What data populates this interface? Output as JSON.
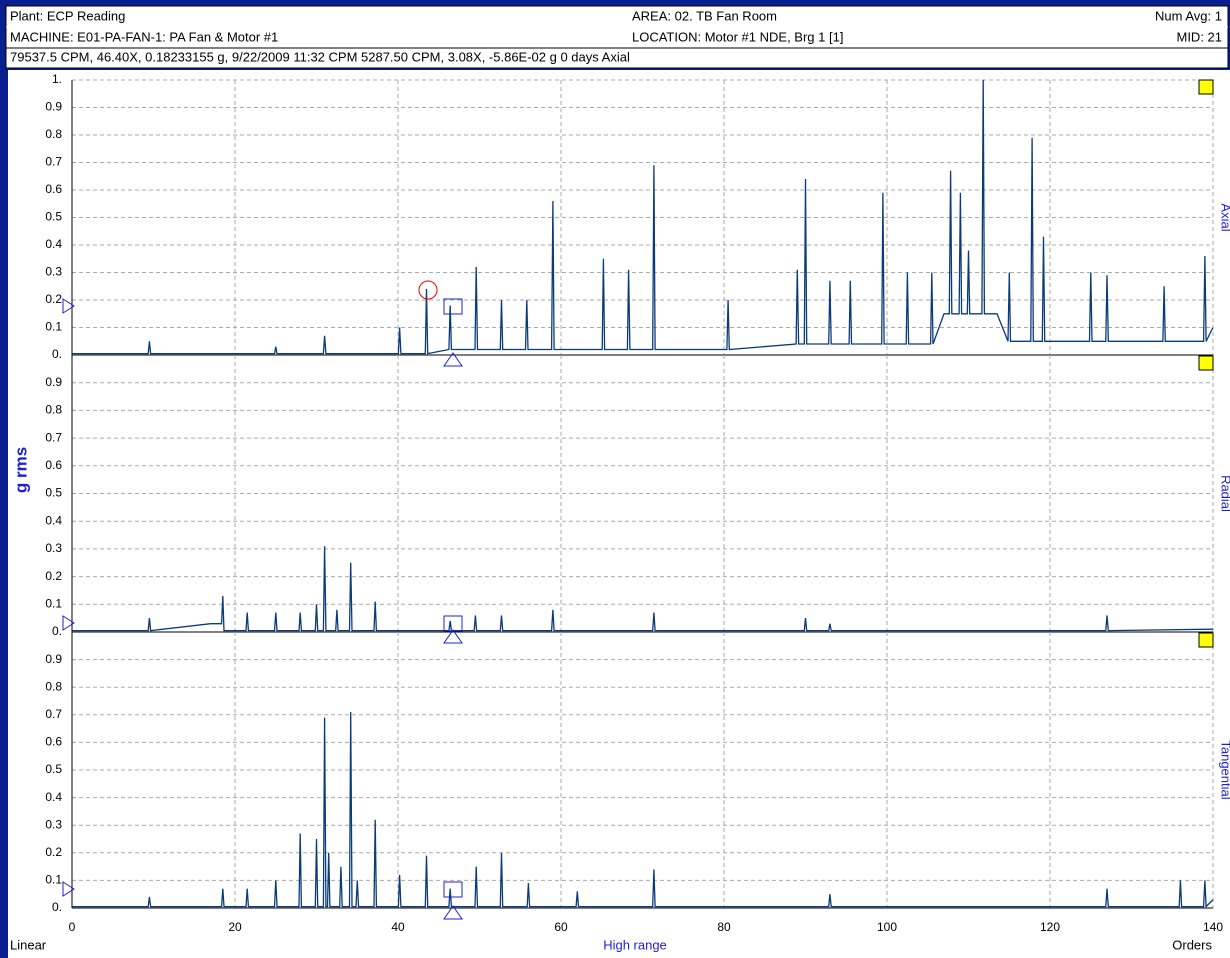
{
  "header": {
    "plant": "Plant: ECP Reading",
    "area": "AREA: 02. TB Fan Room",
    "num_avg": "Num Avg: 1",
    "machine": "MACHINE: E01-PA-FAN-1:  PA Fan & Motor #1",
    "location": "LOCATION: Motor #1 NDE, Brg 1 [1]",
    "mid": "MID: 21",
    "cursor": "79537.5 CPM, 46.40X, 0.18233155 g, 9/22/2009 11:32 CPM 5287.50 CPM, 3.08X, -5.86E-02 g  0 days  Axial"
  },
  "ylabel": "g rms",
  "footer": {
    "scale": "Linear",
    "xlabel": "High range",
    "units": "Orders"
  },
  "chart_data": [
    {
      "type": "line",
      "side_label": "Axial",
      "color": "#0a3a7a",
      "grid": true,
      "xlim": [
        0,
        140
      ],
      "xticks": [
        0,
        20,
        40,
        60,
        80,
        100,
        120,
        140
      ],
      "ylim": [
        0,
        1
      ],
      "yticks": [
        {
          "value": 0,
          "label": "0."
        },
        0.1,
        0.2,
        0.3,
        0.4,
        0.5,
        0.6,
        0.7,
        0.8,
        0.9,
        {
          "value": 1,
          "label": "1."
        }
      ],
      "x": [
        0,
        9.35,
        9.5,
        9.65,
        24.85,
        25,
        25.15,
        30.85,
        31,
        31.15,
        40.05,
        40.2,
        40.35,
        43.35,
        43.5,
        43.65,
        46.25,
        46.4,
        46.55,
        49.45,
        49.6,
        49.75,
        52.55,
        52.7,
        52.85,
        55.65,
        55.8,
        55.95,
        58.85,
        59,
        59.15,
        65.05,
        65.2,
        65.35,
        68.15,
        68.3,
        68.45,
        71.25,
        71.4,
        71.55,
        80.35,
        80.5,
        80.65,
        88.85,
        89,
        89.15,
        89.85,
        90,
        90.15,
        92.85,
        93,
        93.15,
        95.35,
        95.5,
        95.65,
        99.35,
        99.5,
        99.65,
        102.35,
        102.5,
        102.65,
        105.35,
        105.5,
        105.65,
        107,
        107.65,
        107.8,
        107.95,
        108.85,
        109,
        109.15,
        109.85,
        110,
        110.15,
        111.65,
        111.8,
        111.95,
        113.5,
        114.85,
        115,
        115.15,
        117.65,
        117.8,
        117.95,
        119.05,
        119.2,
        119.35,
        124.85,
        125,
        125.15,
        126.85,
        127,
        127.15,
        133.85,
        134,
        134.15,
        138.85,
        139,
        139.15,
        140
      ],
      "values": [
        0.005,
        0.005,
        0.05,
        0.005,
        0.005,
        0.03,
        0.005,
        0.005,
        0.07,
        0.005,
        0.005,
        0.1,
        0.005,
        0.005,
        0.24,
        0.005,
        0.02,
        0.18,
        0.02,
        0.02,
        0.32,
        0.02,
        0.02,
        0.2,
        0.02,
        0.02,
        0.2,
        0.02,
        0.02,
        0.56,
        0.02,
        0.02,
        0.35,
        0.02,
        0.02,
        0.31,
        0.02,
        0.02,
        0.69,
        0.02,
        0.02,
        0.2,
        0.02,
        0.04,
        0.31,
        0.04,
        0.04,
        0.64,
        0.04,
        0.04,
        0.27,
        0.04,
        0.04,
        0.27,
        0.04,
        0.04,
        0.59,
        0.04,
        0.04,
        0.3,
        0.04,
        0.04,
        0.3,
        0.04,
        0.15,
        0.15,
        0.67,
        0.15,
        0.15,
        0.59,
        0.15,
        0.15,
        0.38,
        0.15,
        0.15,
        1.0,
        0.15,
        0.15,
        0.05,
        0.3,
        0.05,
        0.05,
        0.79,
        0.05,
        0.05,
        0.43,
        0.05,
        0.05,
        0.3,
        0.05,
        0.05,
        0.29,
        0.05,
        0.05,
        0.25,
        0.05,
        0.05,
        0.36,
        0.05,
        0.1
      ]
    },
    {
      "type": "line",
      "side_label": "Radial",
      "color": "#0a3a7a",
      "grid": true,
      "xlim": [
        0,
        140
      ],
      "xticks": [
        0,
        20,
        40,
        60,
        80,
        100,
        120,
        140
      ],
      "ylim": [
        0,
        1
      ],
      "yticks": [
        {
          "value": 0,
          "label": "0."
        },
        0.1,
        0.2,
        0.3,
        0.4,
        0.5,
        0.6,
        0.7,
        0.8,
        0.9
      ],
      "x": [
        0,
        9.35,
        9.5,
        9.65,
        17,
        18.35,
        18.5,
        18.65,
        19.5,
        21.35,
        21.5,
        21.65,
        24.85,
        25,
        25.15,
        27.85,
        28,
        28.15,
        29.85,
        30,
        30.15,
        30.85,
        31,
        31.15,
        32.35,
        32.5,
        32.65,
        34.05,
        34.2,
        34.35,
        37.05,
        37.2,
        37.35,
        46.25,
        46.4,
        46.55,
        49.35,
        49.5,
        49.65,
        52.55,
        52.7,
        52.85,
        58.85,
        59,
        59.15,
        71.25,
        71.4,
        71.55,
        89.85,
        90,
        90.15,
        92.85,
        93,
        93.15,
        126.85,
        127,
        127.15,
        140
      ],
      "values": [
        0.005,
        0.005,
        0.05,
        0.005,
        0.03,
        0.03,
        0.13,
        0.005,
        0.005,
        0.005,
        0.07,
        0.005,
        0.005,
        0.07,
        0.005,
        0.005,
        0.07,
        0.005,
        0.005,
        0.1,
        0.005,
        0.005,
        0.31,
        0.005,
        0.005,
        0.08,
        0.005,
        0.005,
        0.25,
        0.005,
        0.005,
        0.11,
        0.005,
        0.005,
        0.04,
        0.005,
        0.005,
        0.06,
        0.005,
        0.005,
        0.06,
        0.005,
        0.005,
        0.08,
        0.005,
        0.005,
        0.07,
        0.005,
        0.005,
        0.05,
        0.005,
        0.005,
        0.03,
        0.005,
        0.005,
        0.06,
        0.005,
        0.01
      ]
    },
    {
      "type": "line",
      "side_label": "Tangential",
      "color": "#0a3a7a",
      "grid": true,
      "xlim": [
        0,
        140
      ],
      "xticks": [
        0,
        20,
        40,
        60,
        80,
        100,
        120,
        140
      ],
      "ylim": [
        0,
        1
      ],
      "yticks": [
        {
          "value": 0,
          "label": "0."
        },
        0.1,
        0.2,
        0.3,
        0.4,
        0.5,
        0.6,
        0.7,
        0.8,
        0.9
      ],
      "x": [
        0,
        9.35,
        9.5,
        9.65,
        18.35,
        18.5,
        18.65,
        21.35,
        21.5,
        21.65,
        24.85,
        25,
        25.15,
        27.85,
        28,
        28.15,
        29.85,
        30,
        30.15,
        30.85,
        31,
        31.15,
        31.35,
        31.5,
        31.65,
        32.85,
        33,
        33.15,
        34.05,
        34.2,
        34.35,
        34.85,
        35,
        35.15,
        37.05,
        37.2,
        37.35,
        40.05,
        40.2,
        40.35,
        43.35,
        43.5,
        43.65,
        46.25,
        46.4,
        46.55,
        49.45,
        49.6,
        49.75,
        52.55,
        52.7,
        52.85,
        55.85,
        56,
        56.15,
        61.85,
        62,
        62.15,
        71.25,
        71.4,
        71.55,
        92.85,
        93,
        93.15,
        126.85,
        127,
        127.15,
        135.85,
        136,
        136.15,
        138.85,
        139,
        139.15,
        140
      ],
      "values": [
        0.005,
        0.005,
        0.04,
        0.005,
        0.005,
        0.07,
        0.005,
        0.005,
        0.07,
        0.005,
        0.005,
        0.1,
        0.005,
        0.005,
        0.27,
        0.005,
        0.005,
        0.25,
        0.005,
        0.005,
        0.69,
        0.005,
        0.005,
        0.2,
        0.005,
        0.005,
        0.15,
        0.005,
        0.005,
        0.71,
        0.005,
        0.005,
        0.1,
        0.005,
        0.005,
        0.32,
        0.005,
        0.005,
        0.12,
        0.005,
        0.005,
        0.19,
        0.005,
        0.005,
        0.07,
        0.005,
        0.005,
        0.15,
        0.005,
        0.005,
        0.2,
        0.005,
        0.005,
        0.09,
        0.005,
        0.005,
        0.06,
        0.005,
        0.005,
        0.14,
        0.005,
        0.005,
        0.05,
        0.005,
        0.005,
        0.07,
        0.005,
        0.005,
        0.1,
        0.005,
        0.005,
        0.1,
        0.005,
        0.03
      ]
    }
  ]
}
